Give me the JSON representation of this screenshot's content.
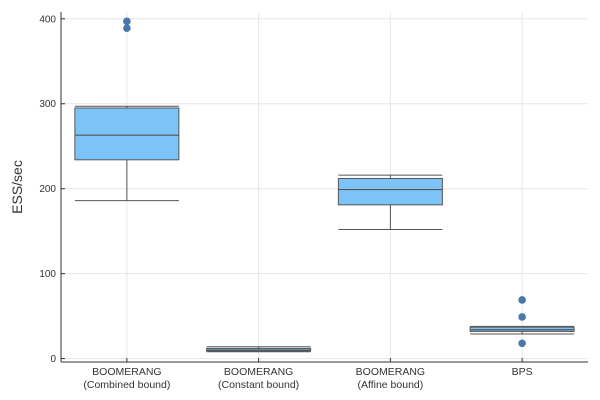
{
  "chart_data": {
    "type": "box",
    "ylabel": "ESS/sec",
    "xlabel": "",
    "ylim": [
      -4,
      408
    ],
    "yticks": [
      0,
      100,
      200,
      300,
      400
    ],
    "grid": true,
    "legend": "none",
    "categories": [
      {
        "line1": "BOOMERANG",
        "line2": "(Combined bound)"
      },
      {
        "line1": "BOOMERANG",
        "line2": "(Constant bound)"
      },
      {
        "line1": "BOOMERANG",
        "line2": "(Affine bound)"
      },
      {
        "line1": "BPS",
        "line2": ""
      }
    ],
    "boxes": [
      {
        "whisker_low": 186,
        "q1": 234,
        "median": 263,
        "q3": 295,
        "whisker_high": 297,
        "outliers": [
          389,
          397
        ]
      },
      {
        "whisker_low": 8,
        "q1": 9,
        "median": 10,
        "q3": 12,
        "whisker_high": 14,
        "outliers": []
      },
      {
        "whisker_low": 152,
        "q1": 181,
        "median": 199,
        "q3": 212,
        "whisker_high": 216,
        "outliers": []
      },
      {
        "whisker_low": 29,
        "q1": 32,
        "median": 34,
        "q3": 37,
        "whisker_high": 38,
        "outliers": [
          18,
          49,
          69
        ]
      }
    ],
    "colors": {
      "box_fill": "#7cc4f8",
      "box_stroke": "#555555",
      "outlier": "#4a78a8",
      "grid": "#e6e6e6",
      "axis": "#333333"
    }
  }
}
